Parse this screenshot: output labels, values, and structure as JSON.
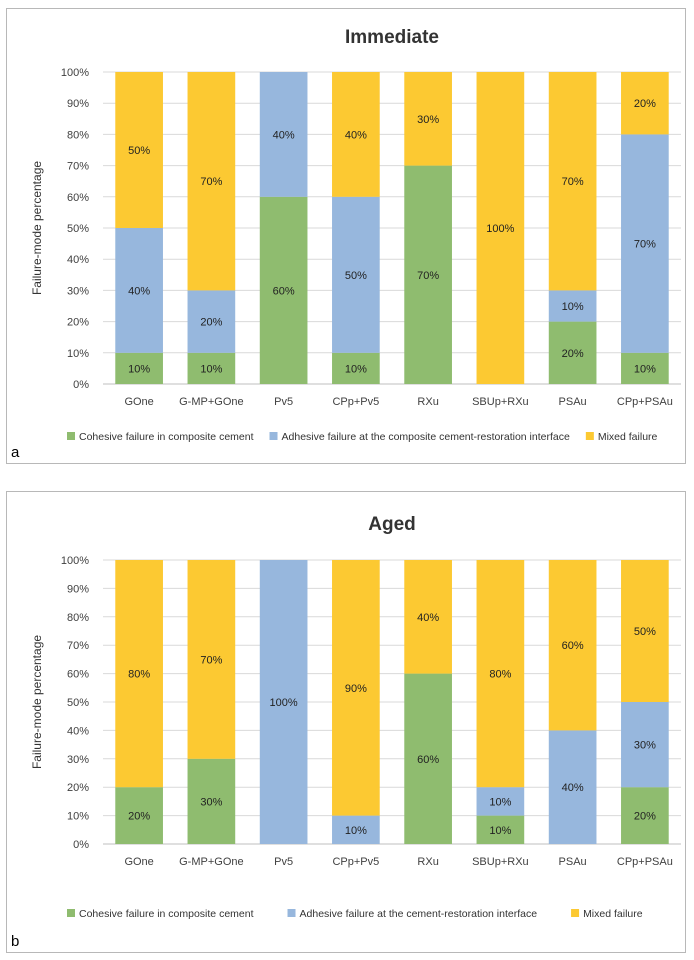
{
  "colors": {
    "cohesive": "#8fbc6f",
    "adhesive": "#97b7dd",
    "mixed": "#fcc932",
    "grid": "#d9d9d9",
    "axis": "#bfbfbf"
  },
  "chart_data": [
    {
      "panel_label": "a",
      "type": "bar",
      "stacked": true,
      "title": "Immediate",
      "ylabel": "Failure-mode percentage",
      "xlabel": "",
      "ylim": [
        0,
        100
      ],
      "yticks": [
        "0%",
        "10%",
        "20%",
        "30%",
        "40%",
        "50%",
        "60%",
        "70%",
        "80%",
        "90%",
        "100%"
      ],
      "categories": [
        "GOne",
        "G-MP+GOne",
        "Pv5",
        "CPp+Pv5",
        "RXu",
        "SBUp+RXu",
        "PSAu",
        "CPp+PSAu"
      ],
      "series": [
        {
          "name": "Cohesive failure in composite cement",
          "color_key": "cohesive",
          "values": [
            10,
            10,
            60,
            10,
            70,
            0,
            20,
            10
          ]
        },
        {
          "name": "Adhesive failure at the composite cement-restoration interface",
          "color_key": "adhesive",
          "values": [
            40,
            20,
            40,
            50,
            0,
            0,
            10,
            70
          ]
        },
        {
          "name": "Mixed failure",
          "color_key": "mixed",
          "values": [
            50,
            70,
            0,
            40,
            30,
            100,
            70,
            20
          ]
        }
      ],
      "legend_position": "bottom"
    },
    {
      "panel_label": "b",
      "type": "bar",
      "stacked": true,
      "title": "Aged",
      "ylabel": "Failure-mode percentage",
      "xlabel": "",
      "ylim": [
        0,
        100
      ],
      "yticks": [
        "0%",
        "10%",
        "20%",
        "30%",
        "40%",
        "50%",
        "60%",
        "70%",
        "80%",
        "90%",
        "100%"
      ],
      "categories": [
        "GOne",
        "G-MP+GOne",
        "Pv5",
        "CPp+Pv5",
        "RXu",
        "SBUp+RXu",
        "PSAu",
        "CPp+PSAu"
      ],
      "series": [
        {
          "name": "Cohesive failure in composite cement",
          "color_key": "cohesive",
          "values": [
            20,
            30,
            0,
            0,
            60,
            10,
            0,
            20
          ]
        },
        {
          "name": "Adhesive failure at the cement-restoration interface",
          "color_key": "adhesive",
          "values": [
            0,
            0,
            100,
            10,
            0,
            10,
            40,
            30
          ]
        },
        {
          "name": "Mixed failure",
          "color_key": "mixed",
          "values": [
            80,
            70,
            0,
            90,
            40,
            80,
            60,
            50
          ]
        }
      ],
      "legend_position": "bottom"
    }
  ]
}
